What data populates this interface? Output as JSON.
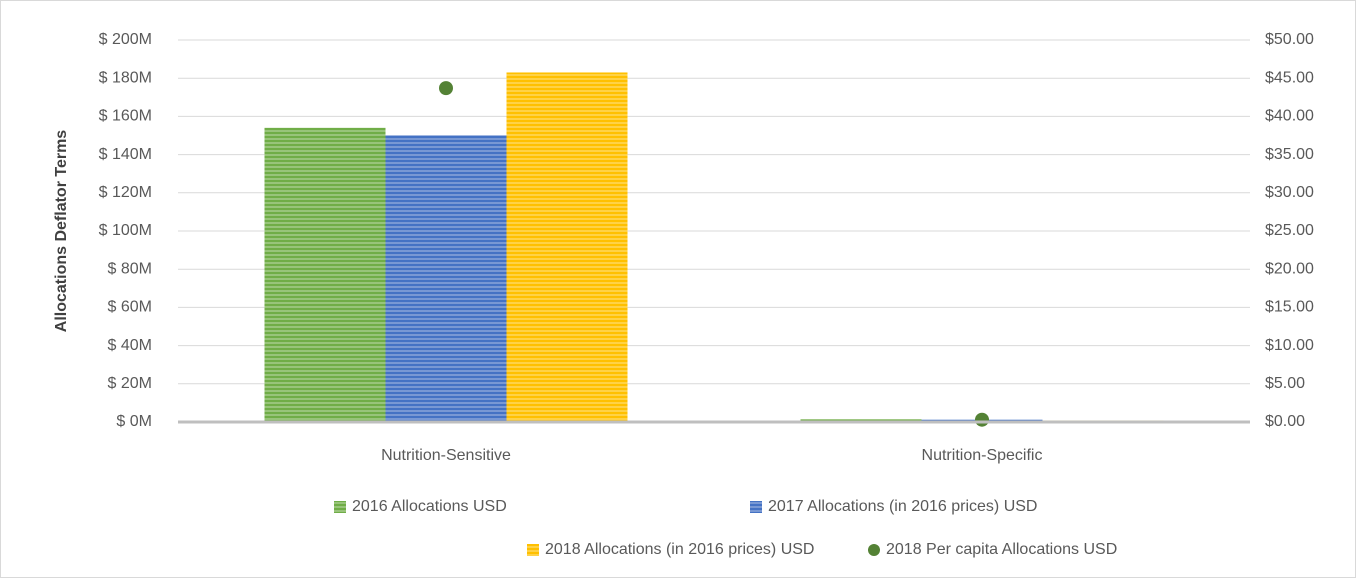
{
  "chart_data": {
    "type": "bar",
    "y_label": "Allocations Deflator Terms",
    "categories": [
      "Nutrition-Sensitive",
      "Nutrition-Specific"
    ],
    "series": [
      {
        "name": "2016 Allocations USD",
        "color": "#70ad47",
        "values": [
          154,
          1.5
        ]
      },
      {
        "name": "2017 Allocations (in 2016 prices) USD",
        "color": "#4472c4",
        "values": [
          150,
          1.2
        ]
      },
      {
        "name": "2018 Allocations (in 2016 prices) USD",
        "color": "#ffc000",
        "values": [
          183,
          0.8
        ]
      },
      {
        "name": "2018 Per capita Allocations USD",
        "color": "#548235",
        "type": "scatter",
        "axis": "y2",
        "values": [
          43.7,
          0.3
        ]
      }
    ],
    "ylim": [
      0,
      200
    ],
    "yticks": [
      {
        "value": 0,
        "label": "$ 0M"
      },
      {
        "value": 20,
        "label": "$ 20M"
      },
      {
        "value": 40,
        "label": "$ 40M"
      },
      {
        "value": 60,
        "label": "$ 60M"
      },
      {
        "value": 80,
        "label": "$ 80M"
      },
      {
        "value": 100,
        "label": "$ 100M"
      },
      {
        "value": 120,
        "label": "$ 120M"
      },
      {
        "value": 140,
        "label": "$ 140M"
      },
      {
        "value": 160,
        "label": "$ 160M"
      },
      {
        "value": 180,
        "label": "$ 180M"
      },
      {
        "value": 200,
        "label": "$ 200M"
      }
    ],
    "y2lim": [
      0,
      50
    ],
    "y2ticks": [
      {
        "value": 0,
        "label": "$0.00"
      },
      {
        "value": 5,
        "label": "$5.00"
      },
      {
        "value": 10,
        "label": "$10.00"
      },
      {
        "value": 15,
        "label": "$15.00"
      },
      {
        "value": 20,
        "label": "$20.00"
      },
      {
        "value": 25,
        "label": "$25.00"
      },
      {
        "value": 30,
        "label": "$30.00"
      },
      {
        "value": 35,
        "label": "$35.00"
      },
      {
        "value": 40,
        "label": "$40.00"
      },
      {
        "value": 45,
        "label": "$45.00"
      },
      {
        "value": 50,
        "label": "$50.00"
      }
    ],
    "grid": true,
    "legend": "bottom"
  }
}
